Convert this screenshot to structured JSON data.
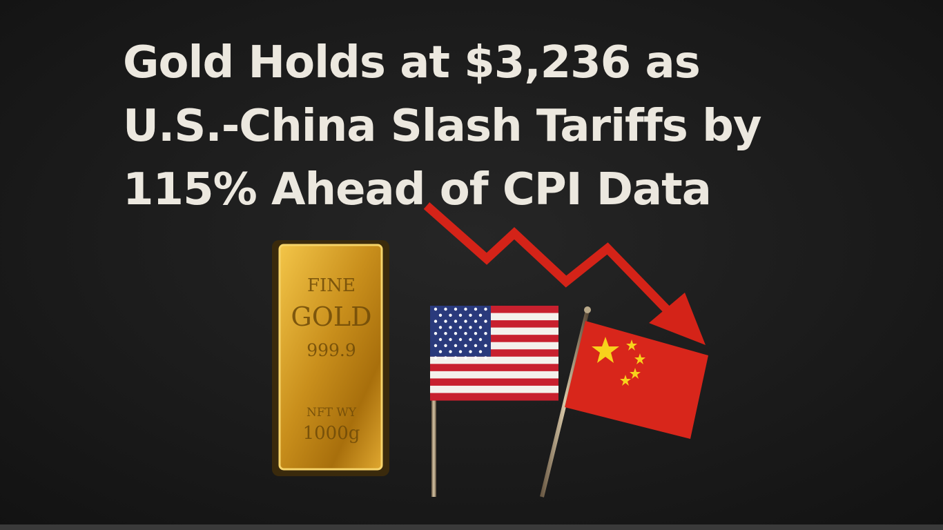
{
  "headline": {
    "lines": [
      "Gold Holds at $3,236 as",
      "U.S.-China Slash Tariffs by",
      "115% Ahead of CPI Data"
    ]
  },
  "gold_bar": {
    "lines": [
      "FINE",
      "GOLD",
      "999.9",
      "NFT WY",
      "1000g"
    ]
  }
}
